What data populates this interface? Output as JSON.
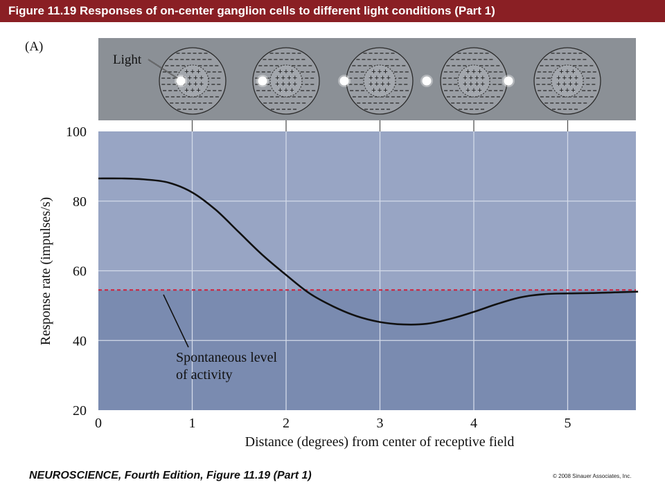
{
  "header": {
    "title": "Figure 11.19 Responses of on-center ganglion cells to different light conditions (Part 1)"
  },
  "panel_label": "(A)",
  "stimulus_panel": {
    "light_label": "Light",
    "center_symbol": "+",
    "surround_symbol": "–",
    "light_spot_distances_deg": [
      1,
      2,
      3,
      4,
      5
    ]
  },
  "annotation": {
    "line1": "Spontaneous level",
    "line2": "of activity"
  },
  "colors": {
    "header_bg": "#8a1f24",
    "stimulus_bg": "#8b9096",
    "plot_bg_upper": "#98a5c4",
    "plot_bg_lower": "#7a8bb0",
    "grid": "#d4dbe9",
    "curve": "#111111",
    "spontaneous_line": "#d0203a"
  },
  "chart_data": {
    "type": "line",
    "title": "",
    "xlabel": "Distance (degrees) from center of receptive field",
    "ylabel": "Response rate (impulses/s)",
    "xlim": [
      0,
      5.75
    ],
    "ylim": [
      20,
      100
    ],
    "x_ticks": [
      0,
      1,
      2,
      3,
      4,
      5
    ],
    "y_ticks": [
      20,
      40,
      60,
      80,
      100
    ],
    "grid": true,
    "series": [
      {
        "x": [
          0,
          0.25,
          0.5,
          0.75,
          1.0,
          1.25,
          1.5,
          1.75,
          2.0,
          2.25,
          2.5,
          2.75,
          3.0,
          3.25,
          3.5,
          3.75,
          4.0,
          4.25,
          4.5,
          4.75,
          5.0,
          5.25,
          5.5,
          5.75
        ],
        "y": [
          86.5,
          86.5,
          86.2,
          85.3,
          82.5,
          77.5,
          71,
          64.5,
          58.8,
          53.5,
          49.8,
          47,
          45.3,
          44.6,
          44.8,
          46.2,
          48.2,
          50.5,
          52.4,
          53.3,
          53.5,
          53.6,
          53.8,
          54
        ]
      },
      {
        "x": [
          0,
          5.75
        ],
        "y": [
          54.5,
          54.5
        ],
        "style": "dashed"
      }
    ]
  },
  "footer": {
    "book_title": "NEUROSCIENCE, Fourth Edition, Figure 11.19 (Part 1)",
    "copyright": "© 2008 Sinauer Associates, Inc."
  }
}
